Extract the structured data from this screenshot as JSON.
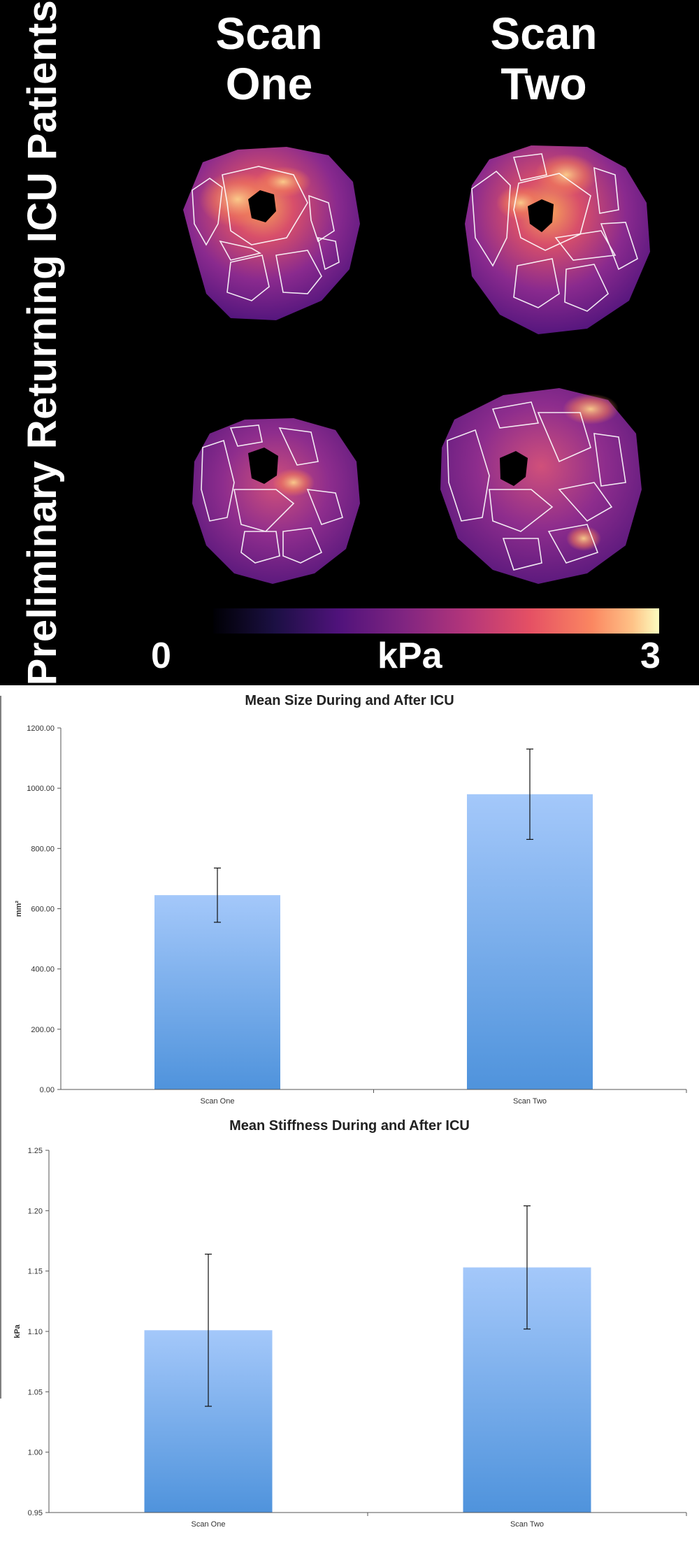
{
  "panel": {
    "side_title": "Preliminary Returning ICU Patients",
    "scan_one_heading": "Scan\nOne",
    "scan_two_heading": "Scan\nTwo",
    "colorbar": {
      "min_label": "0",
      "unit_label": "kPa",
      "max_label": "3"
    },
    "colors": {
      "background": "#000000",
      "text": "#ffffff"
    }
  },
  "chart_data": [
    {
      "type": "bar",
      "title": "Mean Size During and After ICU",
      "xlabel": "",
      "ylabel": "mm²",
      "categories": [
        "Scan One",
        "Scan Two"
      ],
      "values": [
        645,
        980
      ],
      "error": [
        90,
        150
      ],
      "ylim": [
        0,
        1200
      ],
      "yticks": [
        0,
        200,
        400,
        600,
        800,
        1000,
        1200
      ],
      "tick_decimals": 2,
      "grid": false,
      "bar_color_top": "#a4c8fa",
      "bar_color_bottom": "#4f93dc"
    },
    {
      "type": "bar",
      "title": "Mean Stiffness During and After ICU",
      "xlabel": "",
      "ylabel": "kPa",
      "categories": [
        "Scan One",
        "Scan Two"
      ],
      "values": [
        1.101,
        1.153
      ],
      "error": [
        0.063,
        0.051
      ],
      "ylim": [
        0.95,
        1.25
      ],
      "yticks": [
        0.95,
        1.0,
        1.05,
        1.1,
        1.15,
        1.2,
        1.25
      ],
      "tick_decimals": 2,
      "grid": false,
      "bar_color_top": "#a4c8fa",
      "bar_color_bottom": "#4f93dc"
    }
  ]
}
